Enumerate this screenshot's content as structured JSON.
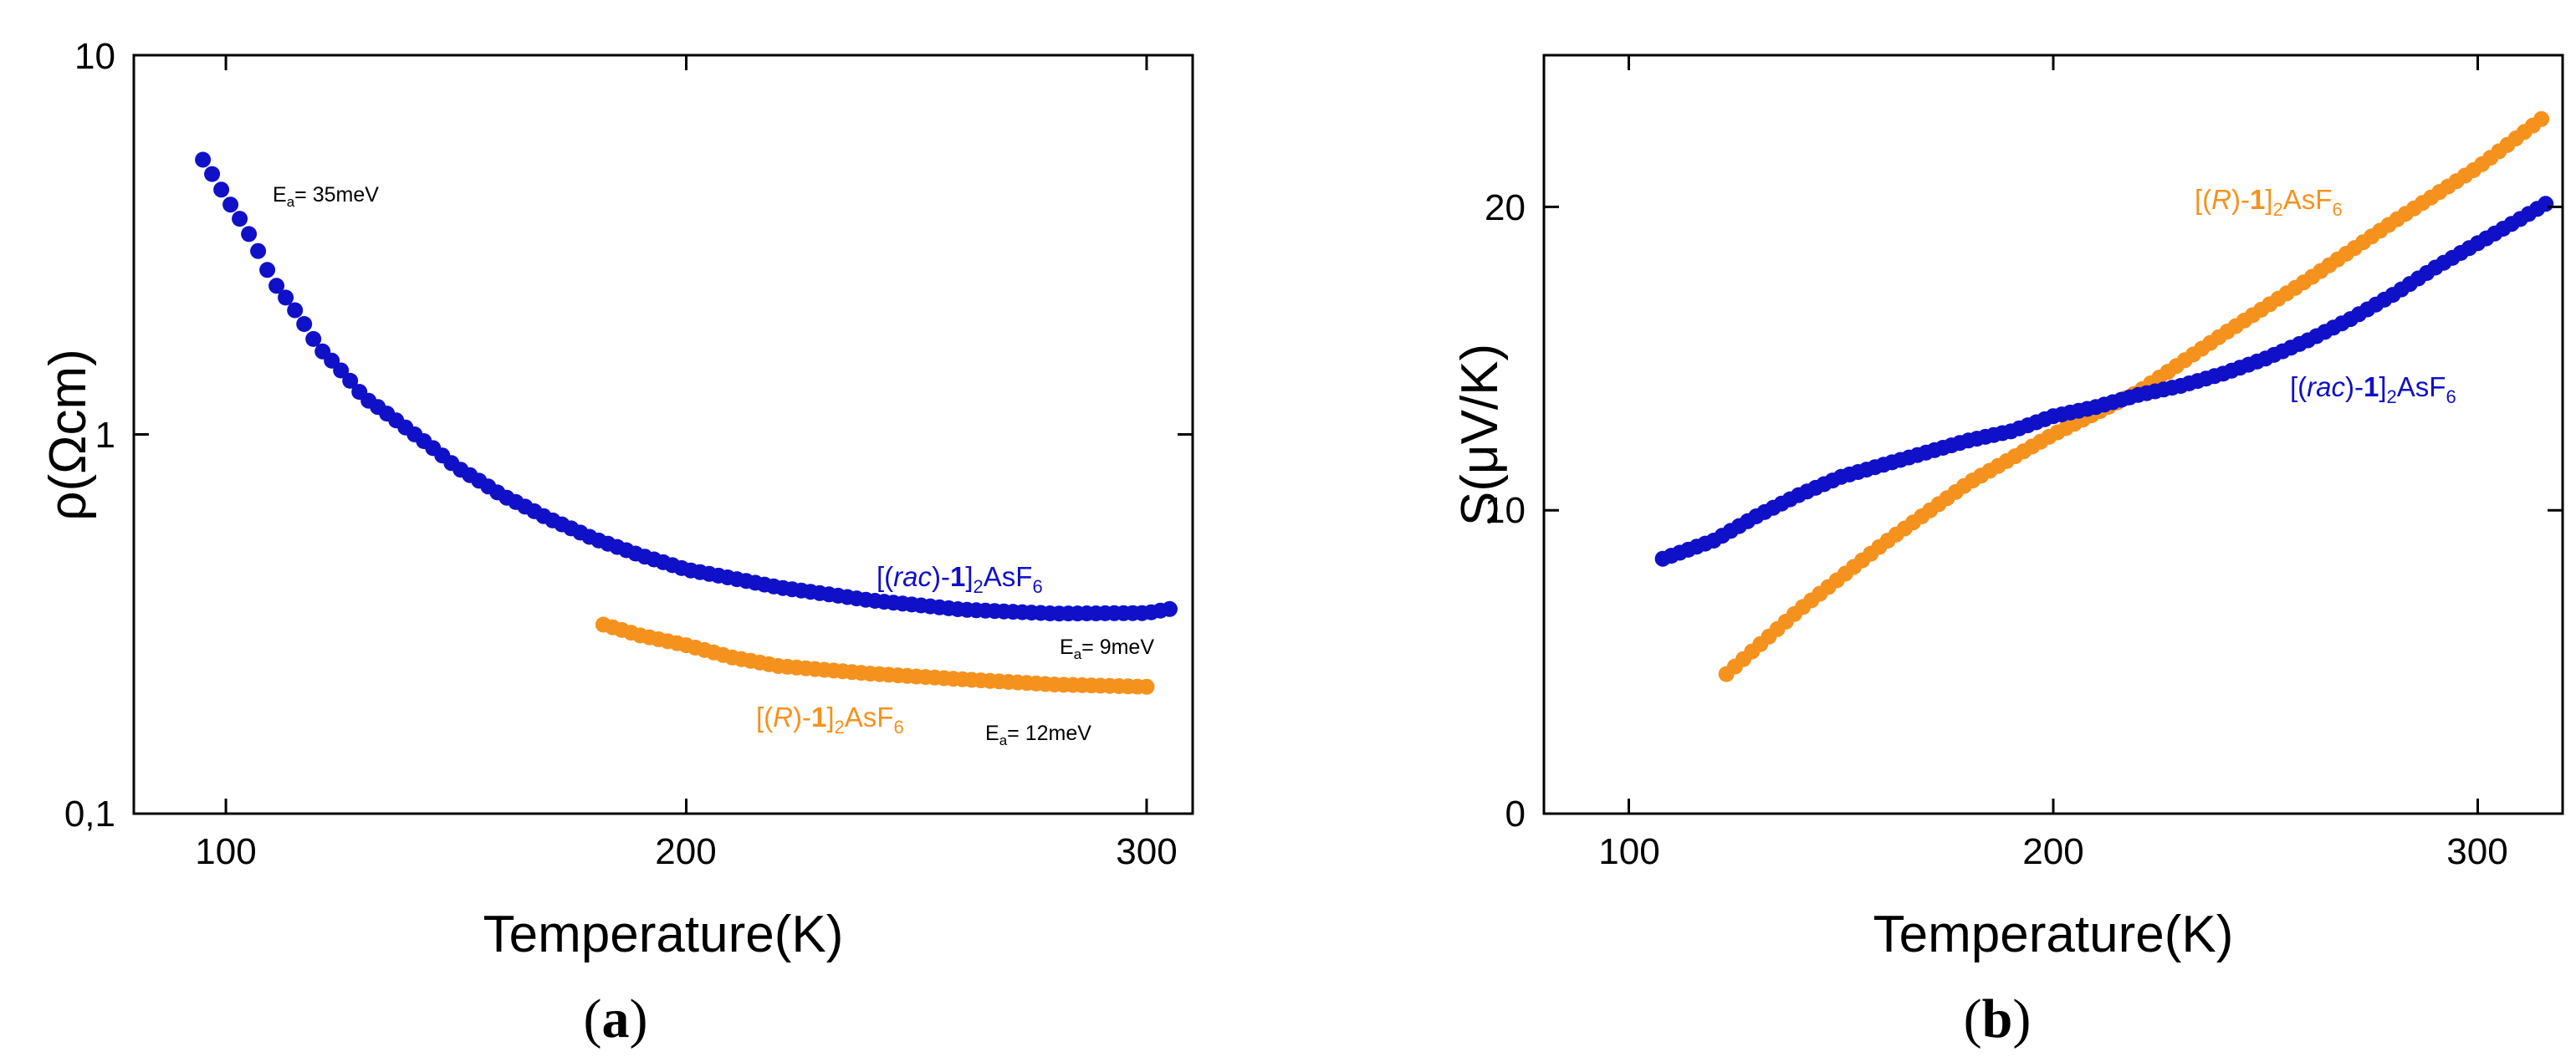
{
  "colors": {
    "rac": "#1010c8",
    "R": "#f5921e",
    "axis": "#000000"
  },
  "chart_data": [
    {
      "type": "scatter",
      "panel_label": "a",
      "xlabel": "Temperature(K)",
      "ylabel": "ρ(Ωcm)",
      "yscale": "log",
      "xlim": [
        80,
        310
      ],
      "ylim": [
        0.1,
        10
      ],
      "xticks": [
        100,
        200,
        300
      ],
      "yticks": [
        0.1,
        1,
        10
      ],
      "ytick_labels": [
        "0,1",
        "1",
        "10"
      ],
      "xtick_labels": [
        "100",
        "200",
        "300"
      ],
      "series": [
        {
          "name": "[(rac)-1]2AsF6",
          "label_parts": [
            "[(",
            "rac",
            ")-",
            "1",
            "]",
            "2",
            "AsF",
            "6"
          ],
          "color_key": "rac",
          "x_start": 95,
          "x_end": 306,
          "step": 2,
          "anchors": [
            [
              95,
              5.3
            ],
            [
              100,
              4.2
            ],
            [
              110,
              2.55
            ],
            [
              120,
              1.7
            ],
            [
              130,
              1.25
            ],
            [
              140,
              1.02
            ],
            [
              150,
              0.82
            ],
            [
              160,
              0.69
            ],
            [
              170,
              0.6
            ],
            [
              180,
              0.53
            ],
            [
              190,
              0.48
            ],
            [
              200,
              0.44
            ],
            [
              220,
              0.395
            ],
            [
              240,
              0.365
            ],
            [
              260,
              0.345
            ],
            [
              280,
              0.337
            ],
            [
              300,
              0.338
            ],
            [
              306,
              0.348
            ]
          ]
        },
        {
          "name": "[(R)-1]2AsF6",
          "label_parts": [
            "[(",
            "R",
            ")-",
            "1",
            "]",
            "2",
            "AsF",
            "6"
          ],
          "color_key": "R",
          "x_start": 182,
          "x_end": 300,
          "step": 2,
          "anchors": [
            [
              182,
              0.315
            ],
            [
              190,
              0.295
            ],
            [
              200,
              0.278
            ],
            [
              210,
              0.258
            ],
            [
              220,
              0.245
            ],
            [
              240,
              0.234
            ],
            [
              260,
              0.226
            ],
            [
              280,
              0.219
            ],
            [
              300,
              0.216
            ]
          ]
        }
      ],
      "annotations": [
        {
          "main": "E",
          "sub": "a",
          "rest": "= 35meV"
        },
        {
          "main": "E",
          "sub": "a",
          "rest": "= 9meV"
        },
        {
          "main": "E",
          "sub": "a",
          "rest": "= 12meV"
        }
      ]
    },
    {
      "type": "scatter",
      "panel_label": "b",
      "xlabel": "Temperature(K)",
      "ylabel": "S(μV/K)",
      "yscale": "linear",
      "xlim": [
        80,
        320
      ],
      "ylim": [
        0,
        25
      ],
      "xticks": [
        100,
        200,
        300
      ],
      "yticks": [
        0,
        10,
        20
      ],
      "xtick_labels": [
        "100",
        "200",
        "300"
      ],
      "ytick_labels": [
        "0",
        "10",
        "20"
      ],
      "series": [
        {
          "name": "[(R)-1]2AsF6",
          "label_parts": [
            "[(",
            "R",
            ")-",
            "1",
            "]",
            "2",
            "AsF",
            "6"
          ],
          "color_key": "R",
          "x_start": 123,
          "x_end": 316,
          "step": 2,
          "anchors": [
            [
              123,
              4.6
            ],
            [
              140,
              6.7
            ],
            [
              160,
              8.9
            ],
            [
              180,
              10.9
            ],
            [
              200,
              12.5
            ],
            [
              220,
              13.9
            ],
            [
              240,
              15.8
            ],
            [
              260,
              17.6
            ],
            [
              280,
              19.5
            ],
            [
              300,
              21.3
            ],
            [
              316,
              23.0
            ]
          ]
        },
        {
          "name": "[(rac)-1]2AsF6",
          "label_parts": [
            "[(",
            "rac",
            ")-",
            "1",
            "]",
            "2",
            "AsF",
            "6"
          ],
          "color_key": "rac",
          "x_start": 108,
          "x_end": 316,
          "step": 2,
          "anchors": [
            [
              108,
              8.4
            ],
            [
              120,
              9.0
            ],
            [
              130,
              9.8
            ],
            [
              140,
              10.5
            ],
            [
              150,
              11.1
            ],
            [
              160,
              11.5
            ],
            [
              170,
              11.9
            ],
            [
              180,
              12.3
            ],
            [
              190,
              12.6
            ],
            [
              200,
              13.1
            ],
            [
              210,
              13.4
            ],
            [
              220,
              13.8
            ],
            [
              230,
              14.1
            ],
            [
              240,
              14.5
            ],
            [
              250,
              15.0
            ],
            [
              260,
              15.6
            ],
            [
              270,
              16.3
            ],
            [
              280,
              17.1
            ],
            [
              290,
              18.0
            ],
            [
              300,
              18.8
            ],
            [
              310,
              19.6
            ],
            [
              316,
              20.1
            ]
          ]
        }
      ]
    }
  ]
}
